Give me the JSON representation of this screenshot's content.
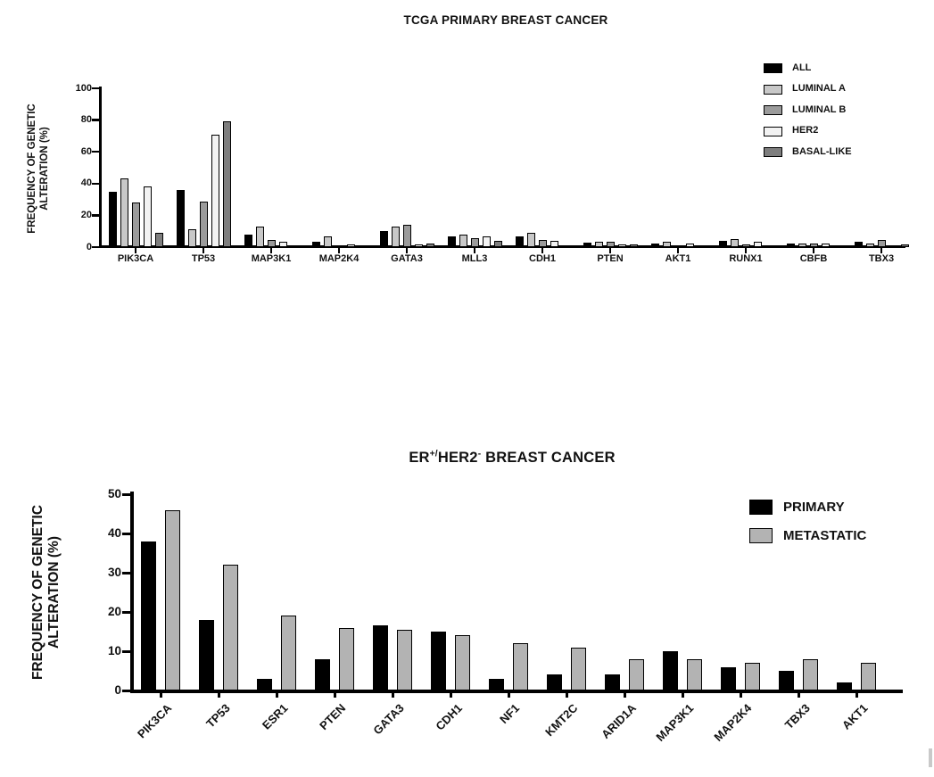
{
  "chart_data": [
    {
      "type": "bar",
      "title": "TCGA PRIMARY BREAST CANCER",
      "ylabel_line1": "FREQUENCY OF GENETIC",
      "ylabel_line2": "ALTERATION (%)",
      "ylim": [
        0,
        100
      ],
      "yticks": [
        0,
        20,
        40,
        60,
        80,
        100
      ],
      "grid": false,
      "legend_position": "right-top",
      "categories": [
        "PIK3CA",
        "TP53",
        "MAP3K1",
        "MAP2K4",
        "GATA3",
        "MLL3",
        "CDH1",
        "PTEN",
        "AKT1",
        "RUNX1",
        "CBFB",
        "TBX3"
      ],
      "series": [
        {
          "name": "ALL",
          "color": "#000000",
          "values": [
            35,
            36,
            8,
            3.5,
            10,
            6.5,
            7,
            3,
            2,
            4,
            2,
            3.5
          ]
        },
        {
          "name": "LUMINAL A",
          "color": "#c8c8c8",
          "values": [
            43,
            11,
            13,
            6.5,
            13,
            8,
            9,
            3.5,
            3.5,
            5,
            2.5,
            2
          ]
        },
        {
          "name": "LUMINAL B",
          "color": "#9b9b9b",
          "values": [
            28,
            28.5,
            4.5,
            1,
            14,
            5.5,
            4.5,
            3.5,
            0.5,
            1.5,
            2.5,
            4.5
          ]
        },
        {
          "name": "HER2",
          "color": "#f2f2f2",
          "values": [
            38,
            71,
            3.5,
            1.5,
            1.5,
            6.5,
            4,
            1.5,
            2,
            3.5,
            2,
            0.5
          ]
        },
        {
          "name": "BASAL-LIKE",
          "color": "#7e7e7e",
          "values": [
            9,
            79,
            1,
            0.5,
            2,
            4,
            0.5,
            1.5,
            0.5,
            0.5,
            0.5,
            1.5
          ]
        }
      ]
    },
    {
      "type": "bar",
      "title": "ER+/HER2- BREAST CANCER",
      "title_parts": {
        "er": "ER",
        "sup1": "+/",
        "her2": "HER2",
        "sup2": "-",
        "rest": " BREAST CANCER"
      },
      "ylabel_line1": "FREQUENCY OF GENETIC",
      "ylabel_line2": "ALTERATION (%)",
      "ylim": [
        0,
        50
      ],
      "yticks": [
        0,
        10,
        20,
        30,
        40,
        50
      ],
      "grid": false,
      "legend_position": "right-top",
      "categories": [
        "PIK3CA",
        "TP53",
        "ESR1",
        "PTEN",
        "GATA3",
        "CDH1",
        "NF1",
        "KMT2C",
        "ARID1A",
        "MAP3K1",
        "MAP2K4",
        "TBX3",
        "AKT1"
      ],
      "series": [
        {
          "name": "PRIMARY",
          "color": "#000000",
          "values": [
            38,
            18,
            3,
            8,
            16.5,
            15,
            3,
            4,
            4,
            10,
            6,
            5,
            2
          ]
        },
        {
          "name": "METASTATIC",
          "color": "#b3b3b3",
          "values": [
            46,
            32,
            19,
            16,
            15.5,
            14,
            12,
            11,
            8,
            8,
            7,
            8,
            7
          ]
        }
      ]
    }
  ],
  "artifact_color": "#c9c9c9"
}
